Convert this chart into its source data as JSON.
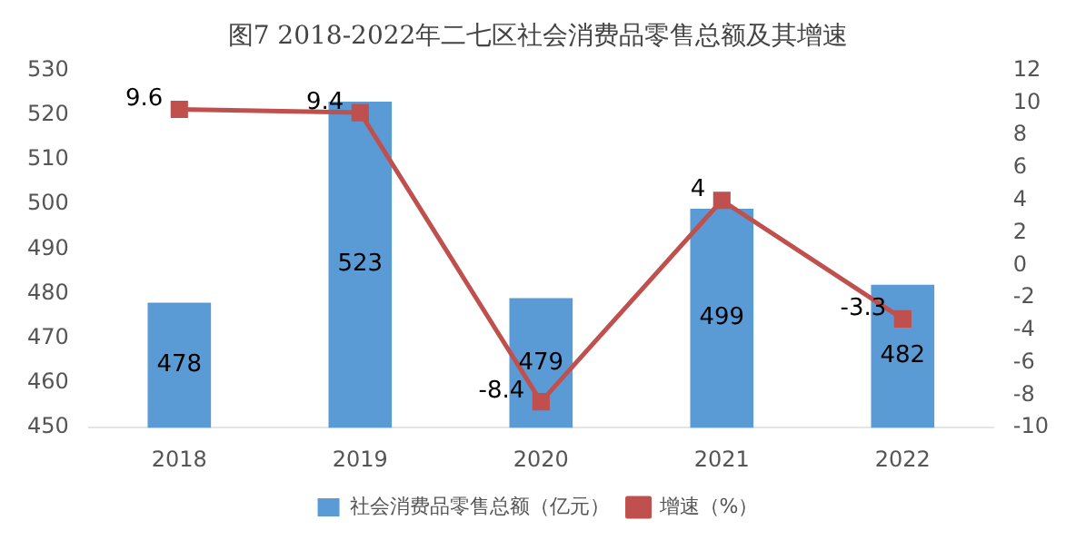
{
  "chart_data": {
    "type": "bar",
    "title": "图7 2018-2022年二七区社会消费品零售总额及其增速",
    "categories": [
      "2018",
      "2019",
      "2020",
      "2021",
      "2022"
    ],
    "series": [
      {
        "name": "社会消费品零售总额（亿元）",
        "color": "#5b9bd5",
        "values": [
          478,
          523,
          479,
          499,
          482
        ]
      },
      {
        "name": "增速（%）",
        "type": "line",
        "axis": "y2",
        "color": "#c0504d",
        "marker": "square",
        "values": [
          9.6,
          9.4,
          -8.4,
          4,
          -3.3
        ]
      }
    ],
    "ylim": [
      450,
      530
    ],
    "yticks": [
      450,
      460,
      470,
      480,
      490,
      500,
      510,
      520,
      530
    ],
    "y2lim": [
      -10,
      12
    ],
    "y2ticks": [
      -10,
      -8,
      -6,
      -4,
      -2,
      0,
      2,
      4,
      6,
      8,
      10,
      12
    ],
    "data_labels": true,
    "legend": "bottom",
    "grid": false
  }
}
